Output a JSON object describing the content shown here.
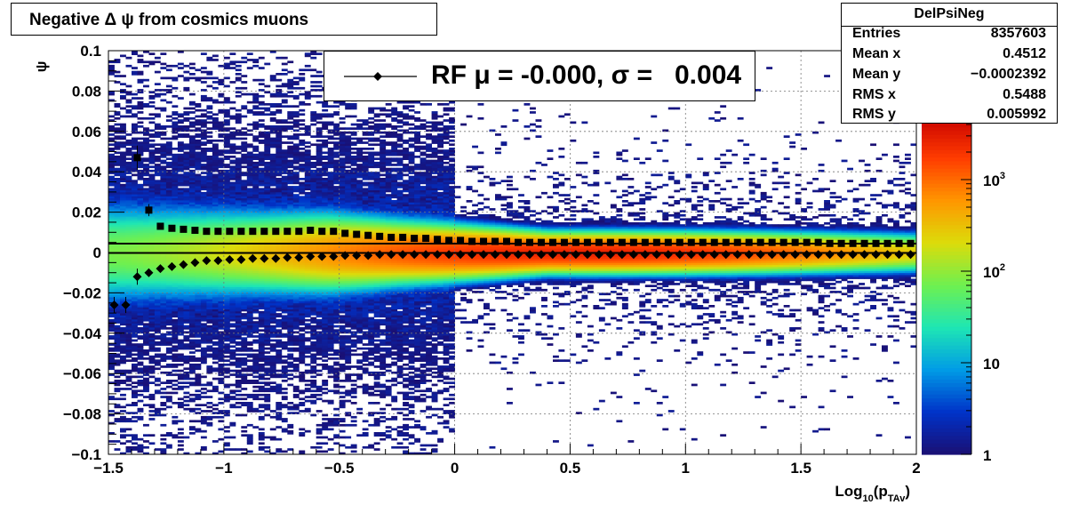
{
  "title": "Negative Δ ψ from cosmics muons",
  "stats": {
    "name": "DelPsiNeg",
    "rows": [
      {
        "label": "Entries",
        "value": "8357603"
      },
      {
        "label": "Mean x",
        "value": "0.4512"
      },
      {
        "label": "Mean y",
        "value": "−0.0002392"
      },
      {
        "label": "RMS x",
        "value": "0.5488"
      },
      {
        "label": "RMS y",
        "value": "0.005992"
      }
    ]
  },
  "legend": {
    "text": "RF μ = -0.000, σ =   0.004"
  },
  "chart_data": {
    "type": "heatmap",
    "xlabel_main": "Log",
    "xlabel_sub1": "10",
    "xlabel_mid": "(p",
    "xlabel_sub2": "TAv",
    "xlabel_end": ")",
    "ylabel": "ψ",
    "xlim": [
      -1.5,
      2
    ],
    "ylim": [
      -0.1,
      0.1
    ],
    "x_ticks": [
      {
        "v": -1.5,
        "l": "−1.5"
      },
      {
        "v": -1,
        "l": "−1"
      },
      {
        "v": -0.5,
        "l": "−0.5"
      },
      {
        "v": 0,
        "l": "0"
      },
      {
        "v": 0.5,
        "l": "0.5"
      },
      {
        "v": 1,
        "l": "1"
      },
      {
        "v": 1.5,
        "l": "1.5"
      },
      {
        "v": 2,
        "l": "2"
      }
    ],
    "y_ticks": [
      {
        "v": 0.1,
        "l": "0.1"
      },
      {
        "v": 0.08,
        "l": "0.08"
      },
      {
        "v": 0.06,
        "l": "0.06"
      },
      {
        "v": 0.04,
        "l": "0.04"
      },
      {
        "v": 0.02,
        "l": "0.02"
      },
      {
        "v": 0,
        "l": "0"
      },
      {
        "v": -0.02,
        "l": "−0.02"
      },
      {
        "v": -0.04,
        "l": "−0.04"
      },
      {
        "v": -0.06,
        "l": "−0.06"
      },
      {
        "v": -0.08,
        "l": "−0.08"
      },
      {
        "v": -0.1,
        "l": "−0.1"
      }
    ],
    "z_scale": "log",
    "zlim": [
      1,
      5000
    ],
    "z_ticks": [
      {
        "v": 1,
        "base": "1",
        "exp": ""
      },
      {
        "v": 10,
        "base": "10",
        "exp": ""
      },
      {
        "v": 100,
        "base": "10",
        "exp": "2"
      },
      {
        "v": 1000,
        "base": "10",
        "exp": "3"
      }
    ],
    "grid": true,
    "colormap": [
      "#1a0f73",
      "#0032c8",
      "#009be6",
      "#1ee6b4",
      "#6ef050",
      "#dcdc0a",
      "#ff9600",
      "#ff3c00",
      "#c80000"
    ],
    "mean_series": {
      "marker": "diamond",
      "x": [
        -1.475,
        -1.425,
        -1.375,
        -1.325,
        -1.275,
        -1.225,
        -1.175,
        -1.125,
        -1.075,
        -1.025,
        -0.975,
        -0.925,
        -0.875,
        -0.825,
        -0.775,
        -0.725,
        -0.675,
        -0.625,
        -0.575,
        -0.525,
        -0.475,
        -0.425,
        -0.375,
        -0.325,
        -0.275,
        -0.225,
        -0.175,
        -0.125,
        -0.075,
        -0.025,
        0.025,
        0.075,
        0.125,
        0.175,
        0.225,
        0.275,
        0.325,
        0.375,
        0.425,
        0.475,
        0.525,
        0.575,
        0.625,
        0.675,
        0.725,
        0.775,
        0.825,
        0.875,
        0.925,
        0.975,
        1.025,
        1.075,
        1.125,
        1.175,
        1.225,
        1.275,
        1.325,
        1.375,
        1.425,
        1.475,
        1.525,
        1.575,
        1.625,
        1.675,
        1.725,
        1.775,
        1.825,
        1.875,
        1.925,
        1.975
      ],
      "y": [
        -0.026,
        -0.026,
        -0.012,
        -0.01,
        -0.008,
        -0.007,
        -0.006,
        -0.005,
        -0.004,
        -0.004,
        -0.0035,
        -0.0035,
        -0.003,
        -0.003,
        -0.003,
        -0.0025,
        -0.0025,
        -0.002,
        -0.002,
        -0.002,
        -0.0015,
        -0.0015,
        -0.0015,
        -0.001,
        -0.001,
        -0.001,
        -0.001,
        -0.001,
        -0.001,
        -0.001,
        -0.001,
        -0.001,
        -0.001,
        -0.001,
        -0.001,
        -0.001,
        -0.001,
        -0.001,
        -0.001,
        -0.001,
        -0.001,
        -0.001,
        -0.001,
        -0.001,
        -0.001,
        -0.001,
        -0.001,
        -0.001,
        -0.001,
        -0.001,
        -0.001,
        -0.001,
        -0.001,
        -0.001,
        -0.001,
        -0.001,
        -0.001,
        -0.001,
        -0.001,
        -0.001,
        -0.001,
        -0.001,
        -0.001,
        -0.001,
        -0.001,
        -0.001,
        -0.001,
        -0.001,
        -0.001,
        -0.001
      ],
      "yerr": [
        0.004,
        0.004,
        0.004,
        0.002,
        0.001,
        0.0008,
        0.0006,
        0.0005,
        0.0004,
        0.0004,
        0.0003,
        0.0003,
        0.0003,
        0.0003,
        0.0003,
        0.0003,
        0.0003,
        0.0003,
        0.0003,
        0.0003,
        0.0003,
        0.0003,
        0.0003,
        0.0003,
        0.0003,
        0.0003,
        0.0003,
        0.0003,
        0.0003,
        0.0003,
        0.0003,
        0.0003,
        0.0003,
        0.0003,
        0.0003,
        0.0003,
        0.0003,
        0.0003,
        0.0003,
        0.0003,
        0.0003,
        0.0003,
        0.0003,
        0.0003,
        0.0003,
        0.0003,
        0.0003,
        0.0003,
        0.0003,
        0.0003,
        0.0003,
        0.0003,
        0.0003,
        0.0003,
        0.0003,
        0.0003,
        0.0003,
        0.0003,
        0.0003,
        0.0003,
        0.0003,
        0.0003,
        0.0003,
        0.0003,
        0.0003,
        0.0003,
        0.0003,
        0.0003,
        0.0003,
        0.0003
      ]
    },
    "rms_series": {
      "marker": "square",
      "x": [
        -1.375,
        -1.325,
        -1.275,
        -1.225,
        -1.175,
        -1.125,
        -1.075,
        -1.025,
        -0.975,
        -0.925,
        -0.875,
        -0.825,
        -0.775,
        -0.725,
        -0.675,
        -0.625,
        -0.575,
        -0.525,
        -0.475,
        -0.425,
        -0.375,
        -0.325,
        -0.275,
        -0.225,
        -0.175,
        -0.125,
        -0.075,
        -0.025,
        0.025,
        0.075,
        0.125,
        0.175,
        0.225,
        0.275,
        0.325,
        0.375,
        0.425,
        0.475,
        0.525,
        0.575,
        0.625,
        0.675,
        0.725,
        0.775,
        0.825,
        0.875,
        0.925,
        0.975,
        1.025,
        1.075,
        1.125,
        1.175,
        1.225,
        1.275,
        1.325,
        1.375,
        1.425,
        1.475,
        1.525,
        1.575,
        1.625,
        1.675,
        1.725,
        1.775,
        1.825,
        1.875,
        1.925,
        1.975
      ],
      "y": [
        0.047,
        0.021,
        0.013,
        0.012,
        0.0115,
        0.011,
        0.0105,
        0.0105,
        0.0105,
        0.0105,
        0.0105,
        0.0105,
        0.0105,
        0.0105,
        0.0105,
        0.011,
        0.0105,
        0.0105,
        0.0095,
        0.009,
        0.0085,
        0.008,
        0.0075,
        0.0075,
        0.007,
        0.007,
        0.0065,
        0.006,
        0.006,
        0.0055,
        0.0055,
        0.0055,
        0.0055,
        0.005,
        0.005,
        0.005,
        0.005,
        0.005,
        0.005,
        0.005,
        0.005,
        0.005,
        0.005,
        0.005,
        0.005,
        0.005,
        0.005,
        0.005,
        0.005,
        0.005,
        0.005,
        0.005,
        0.005,
        0.005,
        0.005,
        0.005,
        0.005,
        0.005,
        0.005,
        0.005,
        0.0045,
        0.0045,
        0.0045,
        0.0045,
        0.0045,
        0.0045,
        0.0045,
        0.0045
      ],
      "yerr": [
        0.006,
        0.003,
        0.001,
        0.0008,
        0.0006,
        0.0005,
        0.0004,
        0.0004,
        0.0003,
        0.0003,
        0.0003,
        0.0003,
        0.0003,
        0.0003,
        0.0003,
        0.0003,
        0.0003,
        0.0003,
        0.0003,
        0.0003,
        0.0003,
        0.0003,
        0.0003,
        0.0003,
        0.0003,
        0.0003,
        0.0003,
        0.0003,
        0.0003,
        0.0003,
        0.0003,
        0.0003,
        0.0003,
        0.0003,
        0.0003,
        0.0003,
        0.0003,
        0.0003,
        0.0003,
        0.0003,
        0.0003,
        0.0003,
        0.0003,
        0.0003,
        0.0003,
        0.0003,
        0.0003,
        0.0003,
        0.0003,
        0.0003,
        0.0003,
        0.0003,
        0.0003,
        0.0003,
        0.0003,
        0.0003,
        0.0003,
        0.0003,
        0.0003,
        0.0003,
        0.0003,
        0.0003,
        0.0003,
        0.0003,
        0.0003,
        0.0003,
        0.0003,
        0.0003
      ]
    },
    "hlines": [
      {
        "y": 0.0044,
        "from_x": -1.5,
        "to_x": 2
      },
      {
        "y": -0.0002,
        "from_x": -1.5,
        "to_x": 2
      }
    ]
  }
}
